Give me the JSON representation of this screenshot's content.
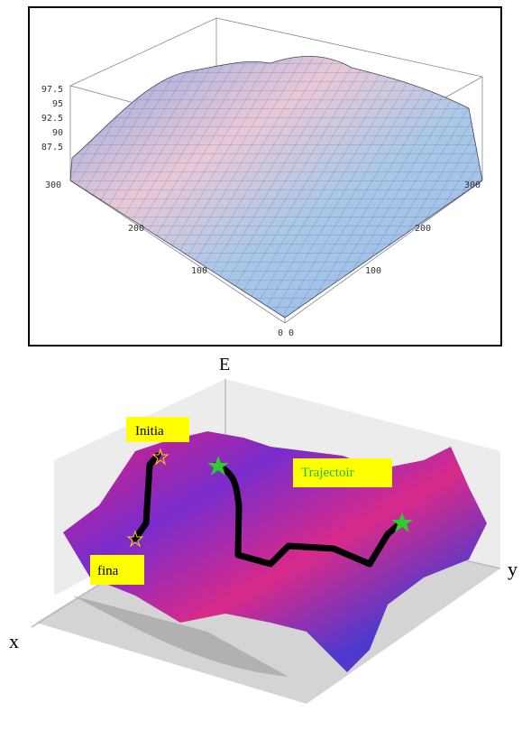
{
  "top_plot": {
    "z_ticks": [
      "97.5",
      "95",
      "92.5",
      "90",
      "87.5"
    ],
    "left_ticks": [
      "300",
      "200",
      "100",
      "0"
    ],
    "right_ticks": [
      "0",
      "100",
      "200",
      "300"
    ]
  },
  "bottom_plot": {
    "axis_e": "E",
    "axis_x": "x",
    "axis_y": "y",
    "initial": "Initia",
    "trajectory": "Trajectoir",
    "final": "fina"
  }
}
